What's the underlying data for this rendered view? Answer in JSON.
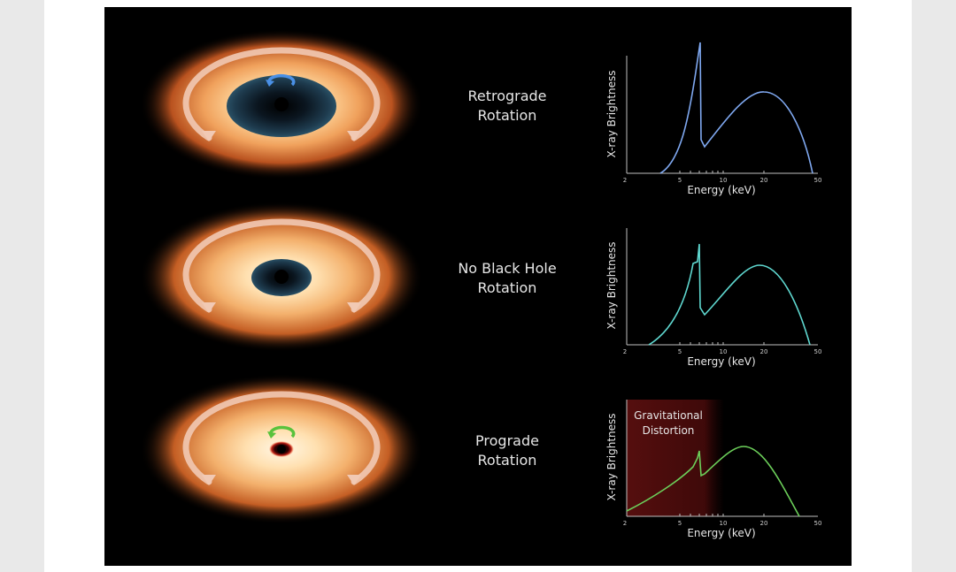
{
  "rows": [
    {
      "label_line1": "Retrograde",
      "label_line2": "Rotation",
      "curve_color": "#7fa8f0",
      "spin_arrow_color": "#4a90e6"
    },
    {
      "label_line1": "No Black Hole",
      "label_line2": "Rotation",
      "curve_color": "#5fd8d0"
    },
    {
      "label_line1": "Prograde",
      "label_line2": "Rotation",
      "curve_color": "#6ccf5a",
      "spin_arrow_color": "#58c23c"
    }
  ],
  "plot": {
    "ylabel": "X-ray Brightness",
    "xlabel": "Energy (keV)",
    "xticks": [
      "2",
      "5",
      "10",
      "20",
      "50"
    ]
  },
  "annotation": {
    "line1": "Gravitational",
    "line2": "Distortion",
    "shade_color": "#5a0f0f"
  },
  "icons": [
    "spin-arrow-icon",
    "rotation-arrow-icon"
  ]
}
